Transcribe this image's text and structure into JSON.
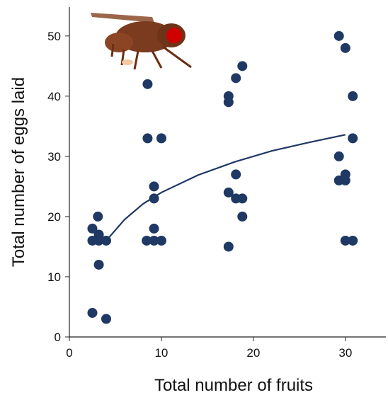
{
  "chart_data": {
    "type": "scatter",
    "x_label": "Total number of fruits",
    "y_label": "Total number of eggs laid",
    "xlim": [
      0,
      34.4
    ],
    "ylim": [
      0,
      54.8
    ],
    "xticks": [
      0,
      10,
      20,
      30
    ],
    "yticks": [
      0,
      10,
      20,
      30,
      40,
      50
    ],
    "color": "#1f3864",
    "points": {
      "x": [
        2.5,
        2.5,
        3.1,
        3.2,
        3.2,
        3.2,
        4.0,
        2.5,
        4.0,
        8.5,
        8.5,
        10.0,
        9.2,
        9.2,
        9.2,
        8.4,
        9.2,
        10.0,
        17.3,
        17.3,
        18.1,
        18.8,
        18.1,
        17.3,
        18.1,
        18.8,
        18.8,
        17.3,
        29.3,
        30.0,
        30.8,
        30.8,
        29.3,
        30.0,
        29.3,
        30.0,
        30.0,
        30.8
      ],
      "y": [
        18,
        16,
        20,
        17,
        16,
        12,
        16,
        4,
        3,
        42,
        33,
        33,
        25,
        23,
        18,
        16,
        16,
        16,
        40,
        39,
        43,
        45,
        27,
        24,
        23,
        23,
        20,
        15,
        50,
        48,
        40,
        33,
        30,
        27,
        26,
        26,
        16,
        16
      ]
    },
    "fit": {
      "x": [
        4,
        6,
        8,
        10,
        14,
        18,
        22,
        26,
        30
      ],
      "y": [
        16.0,
        19.5,
        22.1,
        24.0,
        26.9,
        29.1,
        30.9,
        32.3,
        33.6
      ]
    }
  }
}
